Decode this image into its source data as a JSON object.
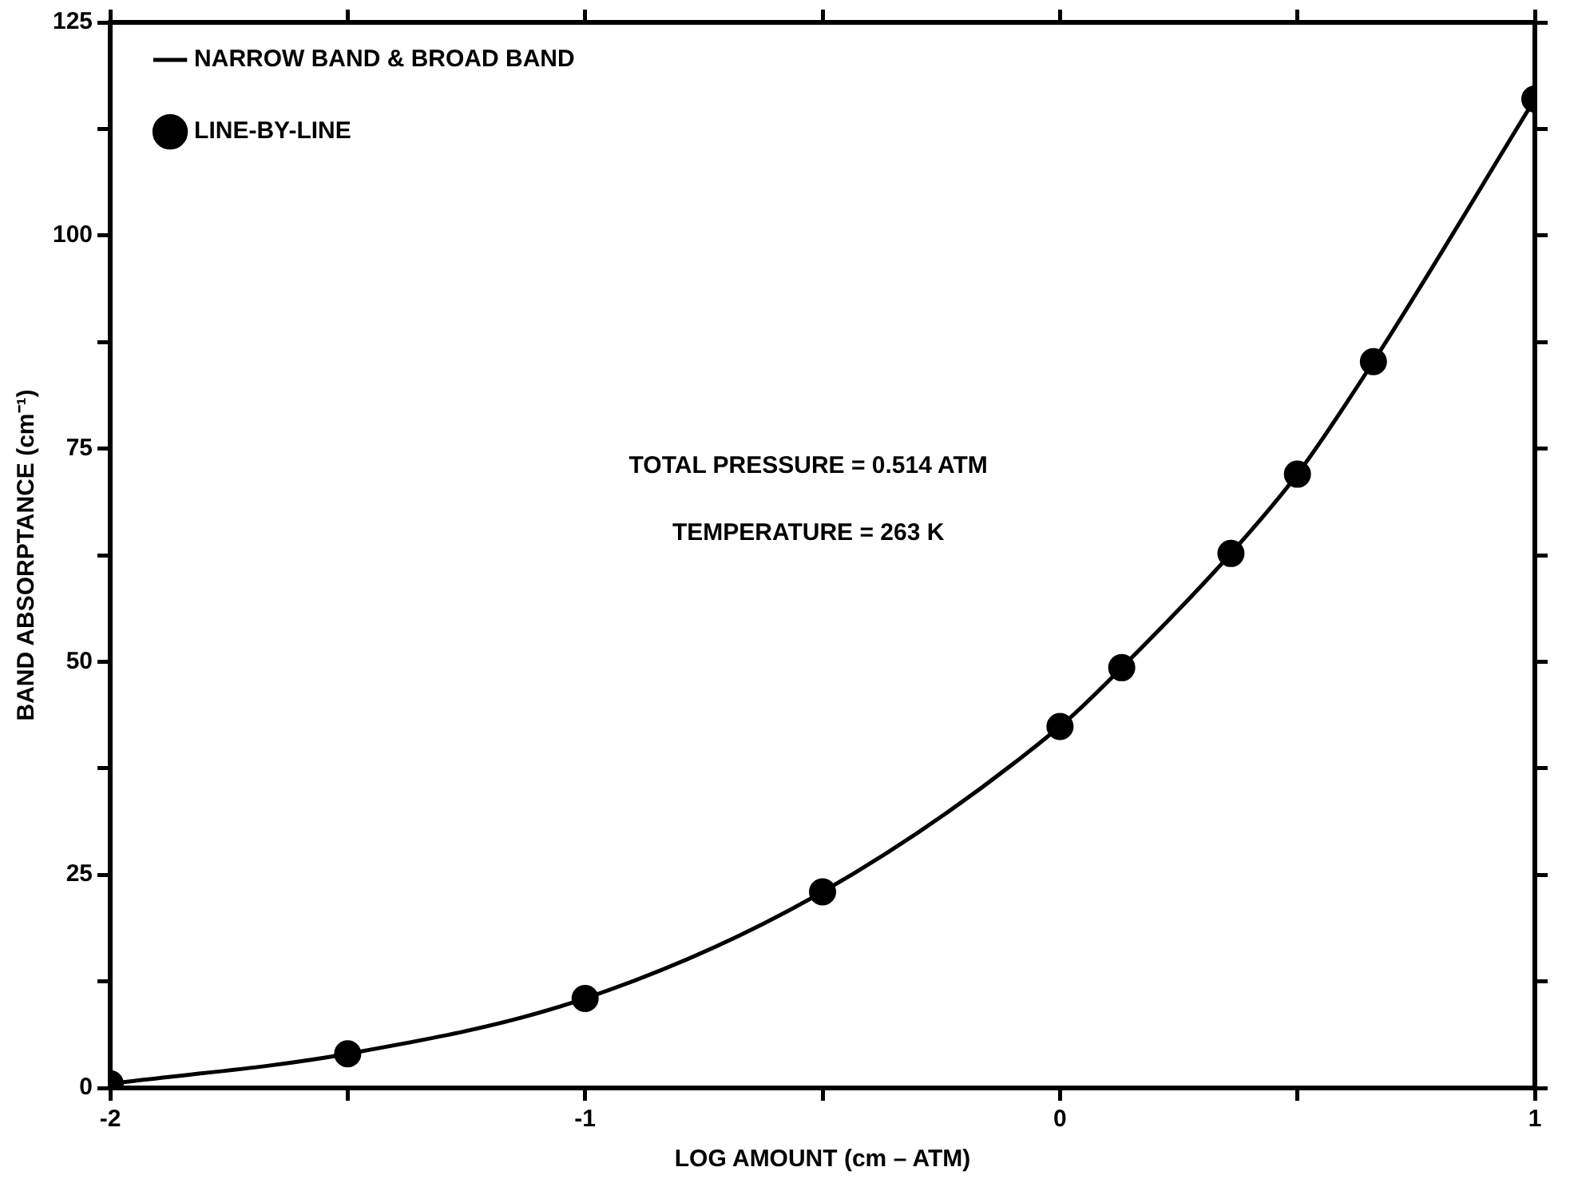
{
  "chart_data": {
    "type": "scatter",
    "xlabel": "LOG AMOUNT (cm – ATM)",
    "ylabel": "BAND ABSORPTANCE (cm⁻¹)",
    "annotations": [
      "TOTAL PRESSURE = 0.514 ATM",
      "TEMPERATURE = 263 K"
    ],
    "series": [
      {
        "name": "NARROW BAND & BROAD BAND",
        "type": "line",
        "marker": "none",
        "line_style": "solid",
        "color": "#000000",
        "x": [
          -2,
          -1.5,
          -1,
          -0.5,
          0,
          0.13,
          0.36,
          0.5,
          0.66,
          1
        ],
        "values": [
          0.5,
          4,
          10.5,
          23,
          42.4,
          49.3,
          62.7,
          72,
          85.2,
          116
        ]
      },
      {
        "name": "LINE-BY-LINE",
        "type": "scatter",
        "marker": "circle",
        "color": "#000000",
        "x": [
          -2,
          -1.5,
          -1,
          -0.5,
          0,
          0.13,
          0.36,
          0.5,
          0.66,
          1
        ],
        "values": [
          0.5,
          4,
          10.5,
          23,
          42.4,
          49.3,
          62.7,
          72,
          85.2,
          116
        ]
      }
    ],
    "xlim": [
      -2,
      1
    ],
    "xticks": [
      -2,
      {
        "value": -1.5,
        "label": null
      },
      -1,
      {
        "value": -0.5,
        "label": null
      },
      0,
      {
        "value": 0.5,
        "label": null
      },
      1
    ],
    "ylim": [
      0,
      125
    ],
    "yticks": [
      0,
      {
        "value": 12.5,
        "label": null
      },
      25,
      {
        "value": 37.5,
        "label": null
      },
      50,
      {
        "value": 62.5,
        "label": null
      },
      75,
      {
        "value": 87.5,
        "label": null
      },
      100,
      {
        "value": 112.5,
        "label": null
      },
      125
    ],
    "grid": false,
    "legend": "top left"
  }
}
